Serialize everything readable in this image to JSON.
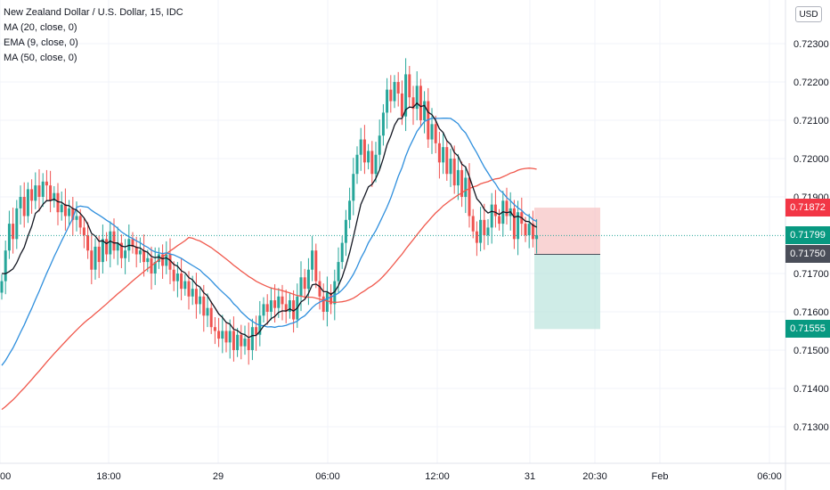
{
  "legend": {
    "title": "New Zealand Dollar / U.S. Dollar, 15, IDC",
    "ma20": "MA (20, close, 0)",
    "ema9": "EMA (9, close, 0)",
    "ma50": "MA (50, close, 0)"
  },
  "currency_button": "USD",
  "price_tags": {
    "ema": "0.71872",
    "last": "0.71799",
    "entry": "0.71750",
    "target": "0.71555"
  },
  "colors": {
    "up": "#26a69a",
    "down": "#ef5350",
    "ema9": "#131722",
    "ma20": "#2f8fdd",
    "ma50": "#f0584c",
    "stop_zone": "#f7c6c6",
    "target_zone": "#bfe6df"
  },
  "chart_data": {
    "type": "candlestick",
    "symbol": "New Zealand Dollar / U.S. Dollar",
    "interval": "15",
    "source": "IDC",
    "ylim": [
      0.71265,
      0.72335
    ],
    "y_ticks": [
      "0.72300",
      "0.72200",
      "0.72100",
      "0.72000",
      "0.71900",
      "0.71700",
      "0.71600",
      "0.71500",
      "0.71400",
      "0.71300"
    ],
    "x_ticks": [
      "00",
      "18:00",
      "29",
      "06:00",
      "12:00",
      "31",
      "20:30",
      "Feb",
      "06:00"
    ],
    "last_price": 0.71799,
    "position": {
      "type": "short",
      "entry": 0.7175,
      "stop": 0.71872,
      "target": 0.71555
    },
    "closes": [
      0.7168,
      0.7176,
      0.7183,
      0.7179,
      0.7187,
      0.719,
      0.7185,
      0.7192,
      0.7189,
      0.7193,
      0.719,
      0.7194,
      0.7193,
      0.7189,
      0.7191,
      0.7186,
      0.7188,
      0.7185,
      0.7187,
      0.7184,
      0.7185,
      0.7182,
      0.718,
      0.7176,
      0.7171,
      0.7177,
      0.7173,
      0.7179,
      0.7175,
      0.7181,
      0.7176,
      0.7178,
      0.7174,
      0.7176,
      0.7179,
      0.7177,
      0.7175,
      0.7176,
      0.7173,
      0.7174,
      0.717,
      0.7173,
      0.7175,
      0.7172,
      0.7175,
      0.7171,
      0.7168,
      0.717,
      0.7166,
      0.7168,
      0.7164,
      0.7166,
      0.7162,
      0.7164,
      0.7159,
      0.7161,
      0.7156,
      0.7155,
      0.7153,
      0.7155,
      0.7152,
      0.7155,
      0.715,
      0.7154,
      0.7151,
      0.7153,
      0.715,
      0.7156,
      0.7154,
      0.7159,
      0.7162,
      0.716,
      0.7163,
      0.7161,
      0.7164,
      0.7162,
      0.716,
      0.7163,
      0.7158,
      0.7164,
      0.7169,
      0.7166,
      0.7171,
      0.7176,
      0.7168,
      0.7164,
      0.716,
      0.7165,
      0.7162,
      0.7168,
      0.7173,
      0.7178,
      0.7184,
      0.7189,
      0.7196,
      0.7201,
      0.7205,
      0.7199,
      0.7202,
      0.7196,
      0.7201,
      0.7206,
      0.7212,
      0.7218,
      0.7215,
      0.722,
      0.7217,
      0.7211,
      0.7222,
      0.7216,
      0.7213,
      0.7219,
      0.721,
      0.7215,
      0.7205,
      0.7209,
      0.7204,
      0.7199,
      0.7203,
      0.7196,
      0.72,
      0.7193,
      0.7197,
      0.719,
      0.7195,
      0.7185,
      0.7181,
      0.7178,
      0.7184,
      0.718,
      0.7182,
      0.7188,
      0.7185,
      0.7183,
      0.7189,
      0.7185,
      0.7187,
      0.7179,
      0.7186,
      0.7183,
      0.718,
      0.7183,
      0.7179,
      0.718
    ]
  }
}
